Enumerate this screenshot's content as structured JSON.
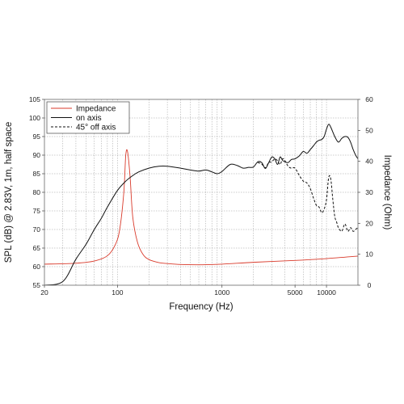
{
  "chart_data": {
    "type": "line",
    "xlabel": "Frequency (Hz)",
    "ylabel_left": "SPL (dB) @ 2.83V, 1m, half space",
    "ylabel_right": "Impedance (Ohm)",
    "x_scale": "log",
    "xlim": [
      20,
      20000
    ],
    "ylim_left": [
      55,
      105
    ],
    "ylim_right": [
      0,
      60
    ],
    "grid": true,
    "legend_position": "top-left",
    "x_tick_labels": [
      "20",
      "100",
      "1000",
      "5000",
      "10000"
    ],
    "x_tick_values": [
      20,
      100,
      1000,
      5000,
      10000
    ],
    "y_left_ticks": [
      55,
      60,
      65,
      70,
      75,
      80,
      85,
      90,
      95,
      100,
      105
    ],
    "y_right_ticks": [
      0,
      10,
      20,
      30,
      40,
      50,
      60
    ],
    "series": [
      {
        "name": "Impedance",
        "axis": "right",
        "color": "#d93a2b",
        "style": "solid",
        "x": [
          20,
          40,
          60,
          80,
          95,
          105,
          115,
          120,
          125,
          132,
          140,
          155,
          175,
          200,
          250,
          300,
          400,
          600,
          1000,
          2000,
          5000,
          10000,
          20000
        ],
        "y": [
          6.8,
          7.1,
          7.8,
          9.5,
          13,
          18,
          30,
          42,
          43,
          35,
          22,
          14,
          10,
          8.3,
          7.3,
          7.0,
          6.7,
          6.6,
          6.8,
          7.4,
          8.0,
          8.6,
          9.4
        ]
      },
      {
        "name": "on axis",
        "axis": "left",
        "color": "#111111",
        "style": "solid",
        "x": [
          20,
          30,
          40,
          50,
          60,
          70,
          80,
          100,
          120,
          140,
          160,
          200,
          250,
          300,
          400,
          500,
          600,
          700,
          800,
          900,
          1000,
          1200,
          1400,
          1600,
          1800,
          2000,
          2200,
          2400,
          2600,
          2800,
          3000,
          3200,
          3400,
          3600,
          3800,
          4000,
          4300,
          4600,
          5000,
          5500,
          6000,
          6500,
          7000,
          7500,
          8000,
          8500,
          9000,
          9500,
          10000,
          10500,
          11000,
          12000,
          13000,
          14000,
          15000,
          16000,
          17000,
          18000,
          19000,
          20000
        ],
        "y": [
          48,
          56,
          62,
          66,
          70,
          73,
          76,
          80.5,
          83,
          84.5,
          85.5,
          86.5,
          87,
          87,
          86.5,
          86,
          85.7,
          86,
          85.5,
          85,
          85.6,
          87.5,
          87.2,
          86.5,
          86.7,
          86.8,
          88.2,
          88.0,
          86.4,
          88.0,
          89.5,
          89.0,
          87.5,
          89.5,
          88.6,
          88.2,
          88.0,
          88.8,
          89.0,
          89.8,
          91.0,
          90.5,
          91.5,
          92.5,
          93.5,
          94.0,
          94.2,
          95.0,
          97.0,
          98.3,
          97.5,
          95.0,
          93.5,
          94.5,
          95.0,
          94.8,
          93.5,
          91.5,
          90.0,
          89.0
        ]
      },
      {
        "name": "45° off axis",
        "axis": "left",
        "color": "#111111",
        "style": "dashed",
        "x": [
          2200,
          2400,
          2600,
          2800,
          3000,
          3200,
          3400,
          3600,
          3800,
          4000,
          4300,
          4600,
          5000,
          5500,
          6000,
          6500,
          7000,
          7500,
          8000,
          8500,
          9000,
          9500,
          10000,
          10500,
          11000,
          11500,
          12000,
          12500,
          13000,
          14000,
          15000,
          16000,
          17000,
          18000,
          19000,
          20000
        ],
        "y": [
          88.0,
          87.6,
          86.6,
          88.0,
          88.2,
          89.0,
          88.5,
          87.5,
          89.0,
          88.5,
          87.0,
          86.5,
          86.5,
          84.5,
          83.0,
          82.5,
          81.0,
          78.5,
          76.5,
          76.0,
          74.5,
          75.5,
          78.0,
          84.0,
          83.5,
          78.0,
          73.5,
          72.0,
          70.5,
          69.5,
          71.5,
          69.5,
          70.5,
          69.5,
          70.0,
          70.5
        ]
      }
    ]
  }
}
